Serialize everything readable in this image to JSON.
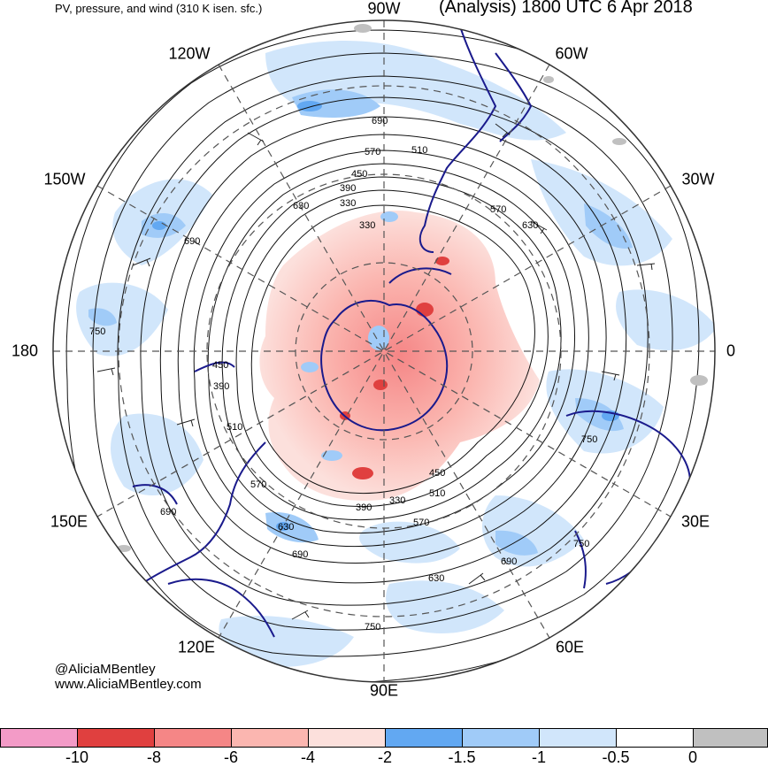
{
  "header": {
    "product_title": "PV, pressure, and wind (310 K isen. sfc.)",
    "valid_time": "(Analysis) 1800 UTC 6 Apr 2018"
  },
  "credits": {
    "handle": "@AliciaMBentley",
    "website": "www.AliciaMBentley.com"
  },
  "longitude_labels": [
    "90W",
    "60W",
    "30W",
    "0",
    "30E",
    "60E",
    "90E",
    "120E",
    "150E",
    "180",
    "150W",
    "120W"
  ],
  "isobar_labels": [
    "690",
    "570",
    "510",
    "450",
    "390",
    "330",
    "630",
    "570",
    "630",
    "690",
    "330",
    "750",
    "450",
    "390",
    "510",
    "570",
    "690",
    "630",
    "690",
    "450",
    "510",
    "330",
    "390",
    "570",
    "690",
    "630",
    "750",
    "750",
    "750"
  ],
  "colorbar": {
    "colors": [
      "#f39bc7",
      "#e0403f",
      "#f58686",
      "#fbb6b0",
      "#fce0dc",
      "#62a8f2",
      "#a0cbf8",
      "#d1e6fb",
      "#ffffff",
      "#c0c0c0"
    ],
    "tick_labels": [
      "-10",
      "-8",
      "-6",
      "-4",
      "-2",
      "-1.5",
      "-1",
      "-0.5",
      "0"
    ]
  },
  "style": {
    "negative_pv_core": "#f58686",
    "negative_pv_light": "#fce0dc",
    "coastline": "#1a1a8c",
    "contour": "#111111",
    "graticule": "#555555"
  }
}
